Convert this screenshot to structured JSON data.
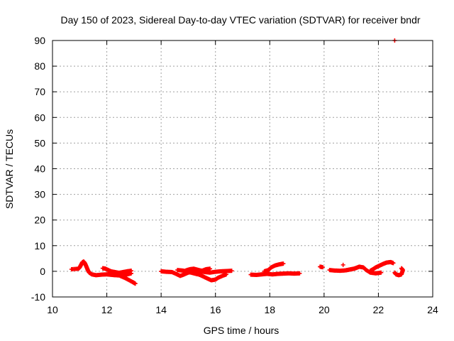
{
  "chart_data": {
    "type": "scatter",
    "title": "Day 150 of 2023, Sidereal Day-to-day VTEC variation (SDTVAR) for receiver bndr",
    "xlabel": "GPS time / hours",
    "ylabel": "SDTVAR / TECUs",
    "xlim": [
      10,
      24
    ],
    "ylim": [
      -10,
      90
    ],
    "xticks": [
      10,
      12,
      14,
      16,
      18,
      20,
      22,
      24
    ],
    "yticks": [
      -10,
      0,
      10,
      20,
      30,
      40,
      50,
      60,
      70,
      80,
      90
    ],
    "grid": true,
    "marker": "+",
    "series_color": "#ff0000",
    "series": [
      {
        "name": "SDTVAR",
        "segments": [
          [
            [
              10.7,
              0.8
            ],
            [
              10.95,
              1.0
            ],
            [
              11.0,
              1.5
            ],
            [
              11.05,
              2.5
            ],
            [
              11.1,
              3.5
            ],
            [
              11.15,
              3.8
            ],
            [
              11.2,
              3.0
            ],
            [
              11.25,
              1.8
            ],
            [
              11.3,
              0.5
            ],
            [
              11.35,
              -0.5
            ],
            [
              11.45,
              -1.2
            ],
            [
              11.6,
              -1.5
            ],
            [
              11.8,
              -1.3
            ],
            [
              12.0,
              -1.2
            ],
            [
              12.2,
              -1.4
            ],
            [
              12.4,
              -1.6
            ],
            [
              12.6,
              -1.5
            ],
            [
              12.75,
              -1.2
            ],
            [
              12.9,
              -0.8
            ]
          ],
          [
            [
              11.85,
              1.2
            ],
            [
              11.95,
              1.0
            ],
            [
              12.05,
              0.5
            ],
            [
              12.15,
              0.0
            ],
            [
              12.3,
              -0.3
            ],
            [
              12.45,
              -0.6
            ],
            [
              12.6,
              -0.3
            ],
            [
              12.75,
              0.0
            ],
            [
              12.9,
              0.2
            ]
          ],
          [
            [
              12.1,
              -0.5
            ],
            [
              12.3,
              -1.0
            ],
            [
              12.5,
              -1.8
            ],
            [
              12.65,
              -2.5
            ],
            [
              12.8,
              -3.3
            ],
            [
              12.95,
              -4.2
            ],
            [
              13.05,
              -4.8
            ]
          ],
          [
            [
              14.0,
              0.0
            ],
            [
              14.2,
              -0.2
            ],
            [
              14.4,
              -0.3
            ],
            [
              14.55,
              -1.0
            ],
            [
              14.7,
              -1.8
            ],
            [
              14.85,
              -1.2
            ],
            [
              15.0,
              -0.5
            ],
            [
              15.2,
              -0.2
            ],
            [
              15.4,
              0.0
            ],
            [
              15.6,
              -0.3
            ],
            [
              15.8,
              -0.5
            ],
            [
              16.0,
              -0.2
            ],
            [
              16.2,
              0.0
            ],
            [
              16.4,
              0.1
            ],
            [
              16.6,
              0.2
            ]
          ],
          [
            [
              14.9,
              0.3
            ],
            [
              15.05,
              0.8
            ],
            [
              15.2,
              1.0
            ],
            [
              15.35,
              0.6
            ],
            [
              15.5,
              0.2
            ],
            [
              15.65,
              0.8
            ],
            [
              15.8,
              1.0
            ]
          ],
          [
            [
              14.6,
              0.5
            ],
            [
              14.8,
              0.3
            ],
            [
              15.0,
              -0.2
            ],
            [
              15.2,
              -0.8
            ],
            [
              15.4,
              -1.3
            ],
            [
              15.55,
              -2.0
            ],
            [
              15.7,
              -2.8
            ],
            [
              15.85,
              -3.5
            ],
            [
              16.0,
              -3.2
            ],
            [
              16.1,
              -2.5
            ],
            [
              16.25,
              -1.8
            ],
            [
              16.4,
              -1.2
            ]
          ],
          [
            [
              17.3,
              -1.3
            ],
            [
              17.5,
              -1.4
            ],
            [
              17.7,
              -1.2
            ],
            [
              17.9,
              -1.0
            ],
            [
              18.1,
              -1.2
            ],
            [
              18.3,
              -1.0
            ],
            [
              18.5,
              -0.9
            ],
            [
              18.7,
              -0.8
            ],
            [
              18.9,
              -0.9
            ],
            [
              19.1,
              -0.8
            ]
          ],
          [
            [
              17.8,
              0.0
            ],
            [
              17.95,
              0.5
            ],
            [
              18.05,
              1.5
            ],
            [
              18.2,
              2.3
            ],
            [
              18.35,
              2.7
            ],
            [
              18.5,
              3.0
            ]
          ],
          [
            [
              19.85,
              1.8
            ],
            [
              19.95,
              1.6
            ]
          ],
          [
            [
              20.2,
              0.5
            ],
            [
              20.4,
              0.3
            ],
            [
              20.6,
              0.2
            ],
            [
              20.8,
              0.4
            ],
            [
              20.9,
              0.6
            ],
            [
              21.0,
              0.8
            ],
            [
              21.1,
              1.0
            ],
            [
              21.2,
              1.4
            ],
            [
              21.3,
              1.8
            ],
            [
              21.45,
              1.5
            ],
            [
              21.55,
              0.5
            ],
            [
              21.7,
              -0.5
            ],
            [
              21.9,
              -0.8
            ],
            [
              22.1,
              -0.5
            ]
          ],
          [
            [
              20.7,
              2.5
            ]
          ],
          [
            [
              21.7,
              0.2
            ],
            [
              21.8,
              0.8
            ],
            [
              21.9,
              1.5
            ],
            [
              22.0,
              2.0
            ],
            [
              22.1,
              2.5
            ],
            [
              22.2,
              3.0
            ],
            [
              22.3,
              3.4
            ],
            [
              22.45,
              3.6
            ],
            [
              22.55,
              3.2
            ]
          ],
          [
            [
              22.6,
              -0.5
            ],
            [
              22.65,
              -1.2
            ],
            [
              22.75,
              -1.5
            ],
            [
              22.85,
              -1.2
            ],
            [
              22.9,
              0.5
            ],
            [
              22.85,
              1.2
            ]
          ],
          [
            [
              22.6,
              90.0
            ]
          ]
        ]
      }
    ]
  }
}
